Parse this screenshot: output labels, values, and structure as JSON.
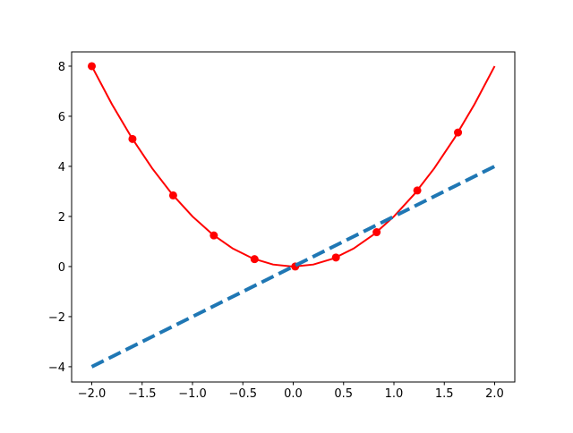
{
  "chart_data": {
    "type": "line",
    "series": [
      {
        "x": [
          -2,
          -1.8,
          -1.6,
          -1.4,
          -1.2,
          -1,
          -0.8,
          -0.6,
          -0.4,
          -0.2,
          0,
          0.2,
          0.4,
          0.6,
          0.8,
          1,
          1.2,
          1.4,
          1.6,
          1.8,
          2
        ],
        "values": [
          8,
          6.48,
          5.12,
          3.92,
          2.88,
          2,
          1.28,
          0.72,
          0.32,
          0.08,
          0,
          0.08,
          0.32,
          0.72,
          1.28,
          2,
          2.88,
          3.92,
          5.12,
          6.48,
          8
        ],
        "color": "#ff0000",
        "linestyle": "solid",
        "linewidth": 1.5
      },
      {
        "x": [
          -2,
          -1.596,
          -1.192,
          -0.788,
          -0.384,
          0.02,
          0.424,
          0.828,
          1.232,
          1.636
        ],
        "values": [
          8,
          5.094,
          2.841,
          1.242,
          0.295,
          0.001,
          0.36,
          1.371,
          3.036,
          5.353
        ],
        "color": "#ff0000",
        "linestyle": "none",
        "marker": "circle"
      },
      {
        "x": [
          -2,
          2
        ],
        "values": [
          -4,
          4
        ],
        "color": "#1f77b4",
        "linestyle": "dashed",
        "linewidth": 3
      }
    ],
    "xlim": [
      -2.2,
      2.2
    ],
    "ylim": [
      -4.61,
      8.57
    ],
    "xticks": [
      {
        "value": -2,
        "label": "−2.0"
      },
      {
        "value": -1.5,
        "label": "−1.5"
      },
      {
        "value": -1,
        "label": "−1.0"
      },
      {
        "value": -0.5,
        "label": "−0.5"
      },
      {
        "value": 0,
        "label": "0.0"
      },
      {
        "value": 0.5,
        "label": "0.5"
      },
      {
        "value": 1,
        "label": "1.0"
      },
      {
        "value": 1.5,
        "label": "1.5"
      },
      {
        "value": 2,
        "label": "2.0"
      }
    ],
    "yticks": [
      {
        "value": -4,
        "label": "−4"
      },
      {
        "value": -2,
        "label": "−2"
      },
      0,
      2,
      4,
      6,
      8
    ]
  }
}
